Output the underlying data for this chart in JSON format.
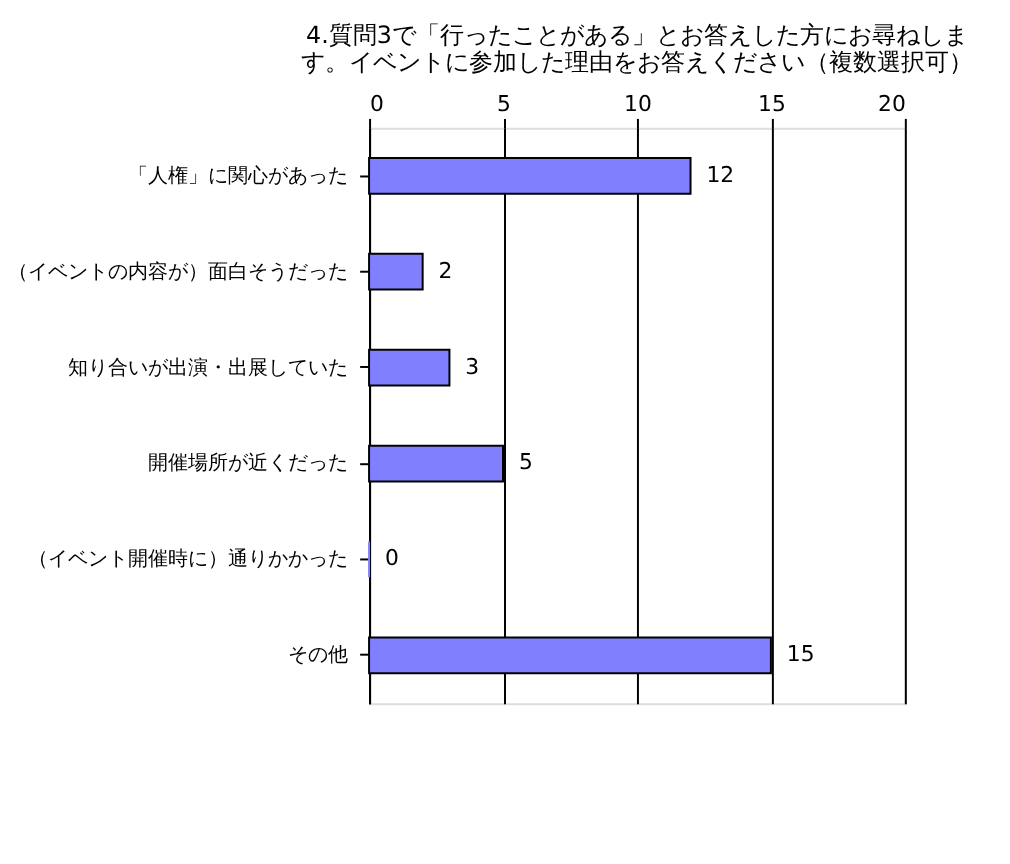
{
  "chart_data": {
    "type": "bar",
    "orientation": "horizontal",
    "title": "4.質問3で「行ったことがある」とお答えした方にお尋ねします。イベントに参加した理由をお答えください（複数選択可）",
    "categories": [
      "「人権」に関心があった",
      "（イベントの内容が）面白そうだった",
      "知り合いが出演・出展していた",
      "開催場所が近くだった",
      "（イベント開催時に）通りかかった",
      "その他"
    ],
    "values": [
      12,
      2,
      3,
      5,
      0,
      15
    ],
    "color": "#8080ff",
    "xlim": [
      0,
      20
    ],
    "xticks": [
      0,
      5,
      10,
      15,
      20
    ],
    "grid": "x",
    "data_labels": true
  }
}
